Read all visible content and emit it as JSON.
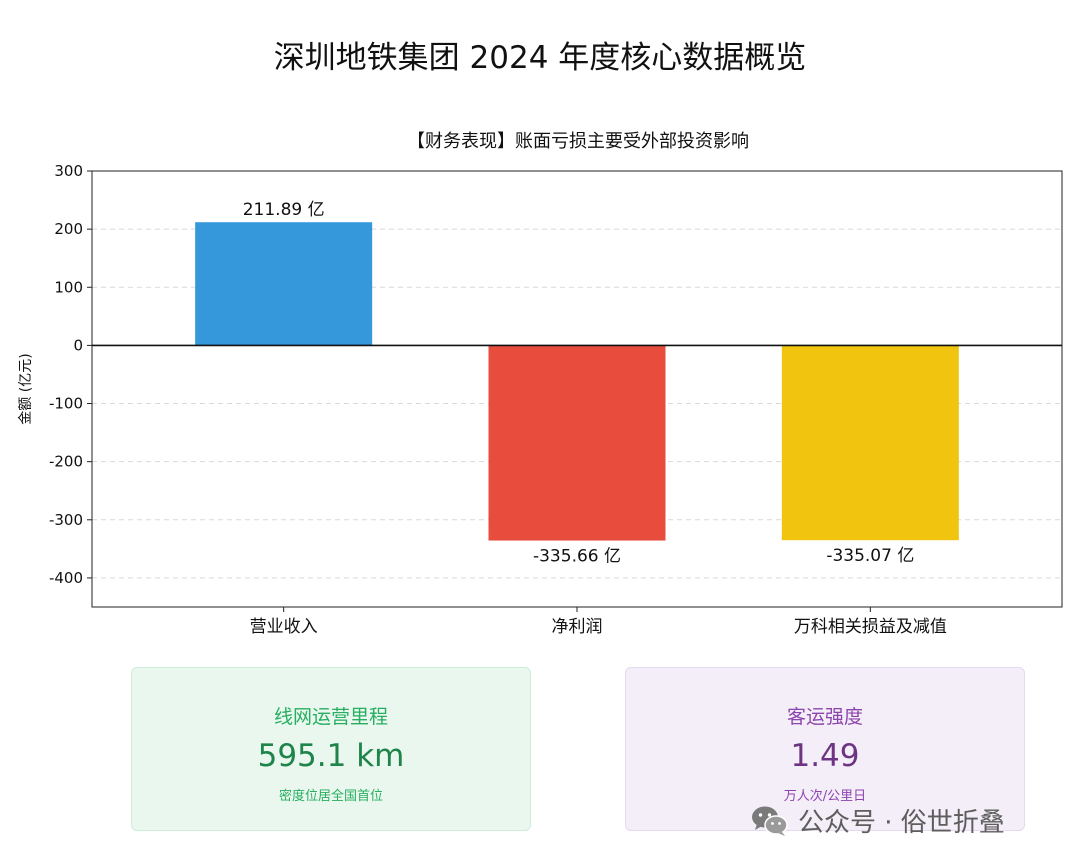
{
  "title": "深圳地铁集团 2024 年度核心数据概览",
  "chart_data": {
    "type": "bar",
    "title": "【财务表现】账面亏损主要受外部投资影响",
    "categories": [
      "营业收入",
      "净利润",
      "万科相关损益及减值"
    ],
    "values": [
      211.89,
      -335.66,
      -335.07
    ],
    "value_labels": [
      "211.89 亿",
      "-335.66 亿",
      "-335.07 亿"
    ],
    "colors": [
      "#3498db",
      "#e74c3c",
      "#f1c40f"
    ],
    "ylabel": "金额 (亿元)",
    "ylim": [
      -450,
      300
    ],
    "yticks": [
      300,
      200,
      100,
      0,
      -100,
      -200,
      -300,
      -400
    ],
    "grid": true
  },
  "cards": {
    "mileage": {
      "title": "线网运营里程",
      "value": "595.1 km",
      "subtitle": "密度位居全国首位"
    },
    "intensity": {
      "title": "客运强度",
      "value": "1.49",
      "subtitle": "万人次/公里日"
    }
  },
  "watermark": {
    "text": "公众号 · 俗世折叠",
    "icon": "wechat-icon"
  }
}
